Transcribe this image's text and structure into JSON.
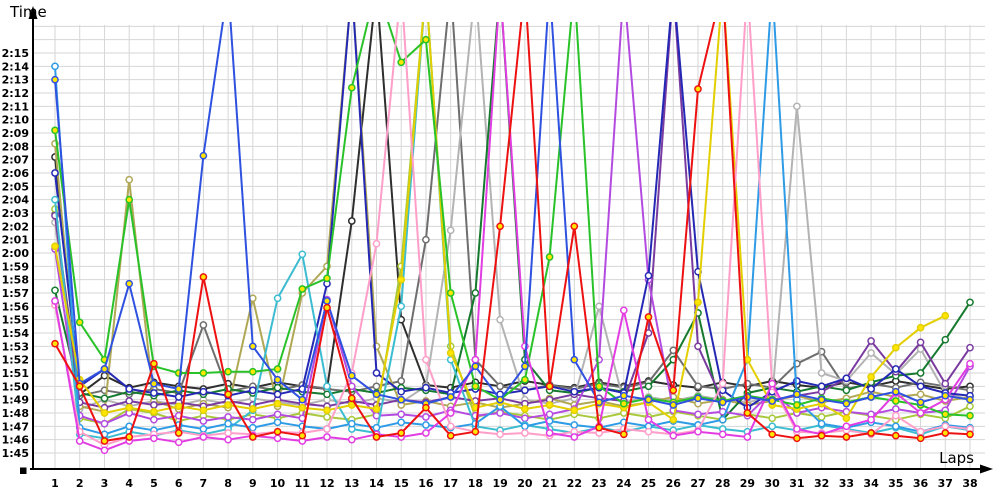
{
  "chart_data": {
    "type": "line",
    "title": "",
    "xlabel": "Laps",
    "ylabel": "Time",
    "x_ticks": [
      1,
      2,
      3,
      4,
      5,
      6,
      7,
      8,
      9,
      10,
      11,
      12,
      13,
      14,
      15,
      16,
      17,
      18,
      19,
      20,
      21,
      22,
      23,
      24,
      25,
      26,
      27,
      28,
      29,
      30,
      31,
      32,
      33,
      34,
      35,
      36,
      37,
      38
    ],
    "y_ticks": [
      "2:15",
      "2:14",
      "2:13",
      "2:12",
      "2:11",
      "2:10",
      "2:09",
      "2:08",
      "2:07",
      "2:06",
      "2:05",
      "2:04",
      "2:03",
      "2:02",
      "2:01",
      "2:00",
      "1:59",
      "1:58",
      "1:57",
      "1:56",
      "1:55",
      "1:54",
      "1:53",
      "1:52",
      "1:51",
      "1:50",
      "1:49",
      "1:48",
      "1:47",
      "1:46",
      "1:45"
    ],
    "ylim_seconds": [
      105,
      135
    ],
    "off_scale_value": 140,
    "grid": true,
    "legend": "none",
    "colors": {
      "grid": "#d6d6d6",
      "axis": "#000000",
      "background": "#ffffff",
      "marker_yellow_fill": "#ffe600",
      "marker_white_fill": "#ffffff"
    },
    "series": [
      {
        "name": "black",
        "color": "#2e2e2e",
        "marker_fill": "white",
        "values": [
          127.2,
          109.4,
          110.8,
          109.9,
          110.3,
          110,
          109.8,
          110.2,
          109.9,
          110.3,
          110,
          109.8,
          122.4,
          140,
          115,
          110.1,
          109.9,
          110.3,
          110,
          110.4,
          110.1,
          109.9,
          110.3,
          110,
          110.4,
          110.1,
          109.9,
          110.3,
          110,
          110.4,
          110.1,
          109.9,
          110.3,
          110,
          110.4,
          110.1,
          109.8,
          110
        ]
      },
      {
        "name": "darkgray",
        "color": "#6e6e6e",
        "marker_fill": "white",
        "values": [
          122.9,
          109.3,
          109.7,
          109.4,
          109.8,
          109.5,
          114.6,
          109.6,
          110,
          109.7,
          110.1,
          109.8,
          109.6,
          110,
          110.4,
          121,
          140,
          112,
          110,
          109.7,
          110.1,
          109.8,
          110.2,
          109.9,
          110.3,
          112.7,
          110,
          109.8,
          110.2,
          109.9,
          111.7,
          112.6,
          109.8,
          110.2,
          109.9,
          110.3,
          110,
          109.7
        ]
      },
      {
        "name": "silver",
        "color": "#b3b3b3",
        "marker_fill": "white",
        "values": [
          122.3,
          108.3,
          109,
          108.5,
          108.9,
          108.6,
          109,
          108.7,
          109.1,
          108.8,
          108.6,
          109,
          108.7,
          109.1,
          108.8,
          110,
          121.7,
          140,
          115,
          109,
          108.7,
          109.1,
          116,
          108.8,
          109.2,
          108.9,
          109.3,
          109,
          108.8,
          109.2,
          131,
          111,
          110.4,
          112.5,
          110.9,
          112.8,
          109.5,
          109
        ]
      },
      {
        "name": "khaki",
        "color": "#b0a855",
        "marker_fill": "white",
        "values": [
          128.2,
          108.5,
          108.1,
          125.5,
          108.9,
          108.3,
          108.7,
          108.4,
          116.6,
          108.5,
          117,
          119,
          140,
          113,
          108.6,
          108.9,
          108.5,
          108.8,
          108.4,
          108.7,
          109.1,
          108.6,
          108.9,
          108.5,
          108.8,
          109.2,
          108.7,
          109,
          108.6,
          108.9,
          109.3,
          108.8,
          109.1,
          109.6,
          109.2,
          109.4,
          108.9,
          109.2
        ]
      },
      {
        "name": "yellowgreen",
        "color": "#a9c93c",
        "marker_fill": "white",
        "values": [
          123.3,
          107.6,
          107.2,
          108.3,
          108,
          107.4,
          107.8,
          107.5,
          107.9,
          107.6,
          108,
          107.7,
          107.5,
          107.9,
          119,
          140,
          113,
          107.7,
          108.1,
          107.8,
          107.5,
          107.9,
          107.6,
          108,
          107.7,
          108.1,
          107.8,
          107.5,
          107.9,
          107.6,
          108,
          107.7,
          108.1,
          107.8,
          107.5,
          107.9,
          107.6,
          108.5
        ]
      },
      {
        "name": "darkgreen",
        "color": "#157a2e",
        "marker_fill": "white",
        "values": [
          117.2,
          109.5,
          109.1,
          109.6,
          109.3,
          109.7,
          109.4,
          109.8,
          109.5,
          109.9,
          109.6,
          109.4,
          109.8,
          109.5,
          109.9,
          109.7,
          109.4,
          117,
          140,
          112,
          109.7,
          109.5,
          109.9,
          109.6,
          110,
          112,
          115.5,
          107.5,
          109.5,
          109.9,
          109.6,
          110,
          109.7,
          110.3,
          110.8,
          111,
          113.5,
          116.3
        ]
      },
      {
        "name": "purple",
        "color": "#7a3ba0",
        "marker_fill": "white",
        "values": [
          122.8,
          108.8,
          108.4,
          108.9,
          108.6,
          108.8,
          108.5,
          108.9,
          108.6,
          109,
          108.7,
          108.5,
          108.9,
          108.6,
          109,
          108.8,
          109.2,
          108.9,
          109.1,
          108.7,
          109,
          109.4,
          109.1,
          108.9,
          114,
          140,
          113,
          108.9,
          109.2,
          109,
          109.3,
          109.6,
          110.6,
          113.4,
          111.1,
          113.3,
          110.2,
          112.9
        ]
      },
      {
        "name": "orchid",
        "color": "#b44be0",
        "marker_fill": "white",
        "values": [
          120.3,
          107.8,
          107.2,
          108,
          107.5,
          107.8,
          107.4,
          107.7,
          107.5,
          107.9,
          107.6,
          116.5,
          110,
          107.8,
          107.9,
          107.7,
          108.2,
          107.8,
          108,
          107.6,
          107.9,
          108.3,
          112,
          140,
          118,
          108.2,
          107.9,
          108.1,
          107.8,
          109.6,
          108,
          108.4,
          108.1,
          107.9,
          108.3,
          108,
          108.2,
          111.5
        ]
      },
      {
        "name": "navy",
        "color": "#2428b4",
        "marker_fill": "white",
        "values": [
          126,
          110,
          111.3,
          109.8,
          109.5,
          109.2,
          109.6,
          109.3,
          109.7,
          109.4,
          109.8,
          117.7,
          140,
          111,
          109.6,
          109.9,
          109.5,
          109.8,
          109.4,
          109.7,
          110,
          109.6,
          109.9,
          109.5,
          118.3,
          140,
          118.6,
          109.7,
          108.4,
          109.6,
          110.4,
          110,
          110.6,
          109.8,
          111.3,
          110,
          109.5,
          109.3
        ]
      },
      {
        "name": "cyan",
        "color": "#3bbcd0",
        "marker_fill": "white",
        "values": [
          124,
          106.4,
          106.1,
          106.6,
          106.3,
          106.7,
          106.4,
          106.8,
          108.2,
          116.6,
          119.9,
          110,
          106.8,
          106.5,
          116,
          140,
          112,
          107,
          106.7,
          107.1,
          106.8,
          106.5,
          106.9,
          106.6,
          107,
          106.7,
          107.1,
          106.8,
          106.6,
          107,
          106.7,
          107.1,
          106.8,
          106.5,
          106.9,
          106.4,
          107,
          106.7
        ]
      },
      {
        "name": "lightblue",
        "color": "#2e9be6",
        "marker_fill": "white",
        "values": [
          134,
          106.9,
          106.4,
          107,
          106.7,
          107.1,
          106.8,
          107.2,
          106.9,
          107.3,
          107,
          106.8,
          107.2,
          106.9,
          107.3,
          107.1,
          106.9,
          107.2,
          108.5,
          107,
          107.4,
          107.1,
          106.9,
          107.3,
          107,
          107.4,
          107.1,
          107.5,
          112,
          140,
          109,
          107.2,
          106.9,
          107.3,
          107,
          106.6,
          107.1,
          106.9
        ]
      },
      {
        "name": "yellow",
        "color": "#e3cf00",
        "marker_fill": "yellow",
        "values": [
          120.5,
          110.5,
          108,
          108.4,
          108.1,
          108.5,
          108.2,
          108.6,
          108.3,
          108.7,
          108.4,
          108.2,
          108.6,
          108.3,
          118,
          140,
          112.5,
          108.4,
          108.8,
          108.3,
          108.6,
          108.2,
          108.7,
          108.4,
          108.8,
          107.5,
          116.3,
          140,
          112,
          108.6,
          108.3,
          108.7,
          107.6,
          110.7,
          112.9,
          114.4,
          115.3,
          null
        ]
      },
      {
        "name": "green",
        "color": "#29c229",
        "marker_fill": "yellow",
        "values": [
          129.2,
          114.8,
          112,
          124,
          111.5,
          111,
          111,
          111.1,
          111.1,
          111.3,
          117.3,
          118.1,
          132.4,
          140,
          134.3,
          136,
          117,
          110,
          109,
          110.5,
          119.7,
          140,
          110,
          108.7,
          109.1,
          108.8,
          109.2,
          108.9,
          109.3,
          109,
          108.6,
          109.1,
          108.8,
          109.2,
          108.9,
          108.6,
          107.9,
          107.8
        ]
      },
      {
        "name": "pink",
        "color": "#ff9ec8",
        "marker_fill": "white",
        "values": [
          116.1,
          106.6,
          105.6,
          106.2,
          106.4,
          106.6,
          106.3,
          106.5,
          106.4,
          106.6,
          106.5,
          106.8,
          111,
          120.7,
          140,
          112,
          107,
          106.6,
          106.4,
          106.5,
          106.3,
          106.6,
          106.5,
          106.8,
          106.6,
          106.4,
          106.7,
          110.2,
          140,
          110,
          106.6,
          106.5,
          106.7,
          106.4,
          107.8,
          106.6,
          107,
          106.8
        ]
      },
      {
        "name": "magenta",
        "color": "#e23de2",
        "marker_fill": "white",
        "values": [
          116.4,
          105.9,
          105.2,
          105.9,
          106.1,
          105.8,
          106.2,
          106,
          106.3,
          106.1,
          105.9,
          106.2,
          106,
          106.4,
          106.2,
          106.5,
          108,
          112,
          140,
          113,
          106.5,
          106.2,
          107,
          115.7,
          107.5,
          106.3,
          106.6,
          106.4,
          106.2,
          110.2,
          106.8,
          106.4,
          107,
          107.5,
          109.5,
          108,
          109,
          111.7
        ]
      },
      {
        "name": "blue",
        "color": "#2f51e0",
        "marker_fill": "yellow",
        "values": [
          133,
          110.2,
          111.3,
          117.7,
          110.2,
          109.8,
          127.3,
          140,
          113,
          110.5,
          109,
          116.4,
          110.8,
          109.4,
          109,
          108.7,
          109.2,
          111.5,
          109,
          111.5,
          140,
          112,
          108.8,
          109.3,
          109,
          108.6,
          109.1,
          108.8,
          109.2,
          108.9,
          109.4,
          109,
          108.7,
          109.2,
          109.6,
          108.8,
          109.3,
          109
        ]
      },
      {
        "name": "red",
        "color": "#ee1111",
        "marker_fill": "yellow",
        "values": [
          113.2,
          110,
          105.9,
          106.2,
          111.7,
          106.5,
          118.2,
          109.4,
          106.2,
          106.6,
          106.3,
          115.9,
          109.1,
          106.2,
          106.5,
          108.4,
          106.3,
          106.6,
          122,
          140,
          110,
          122,
          106.9,
          106.4,
          115.2,
          109.7,
          132.3,
          140,
          108,
          106.4,
          106.1,
          106.3,
          106.2,
          106.5,
          106.3,
          106.1,
          106.5,
          106.4
        ]
      }
    ]
  }
}
